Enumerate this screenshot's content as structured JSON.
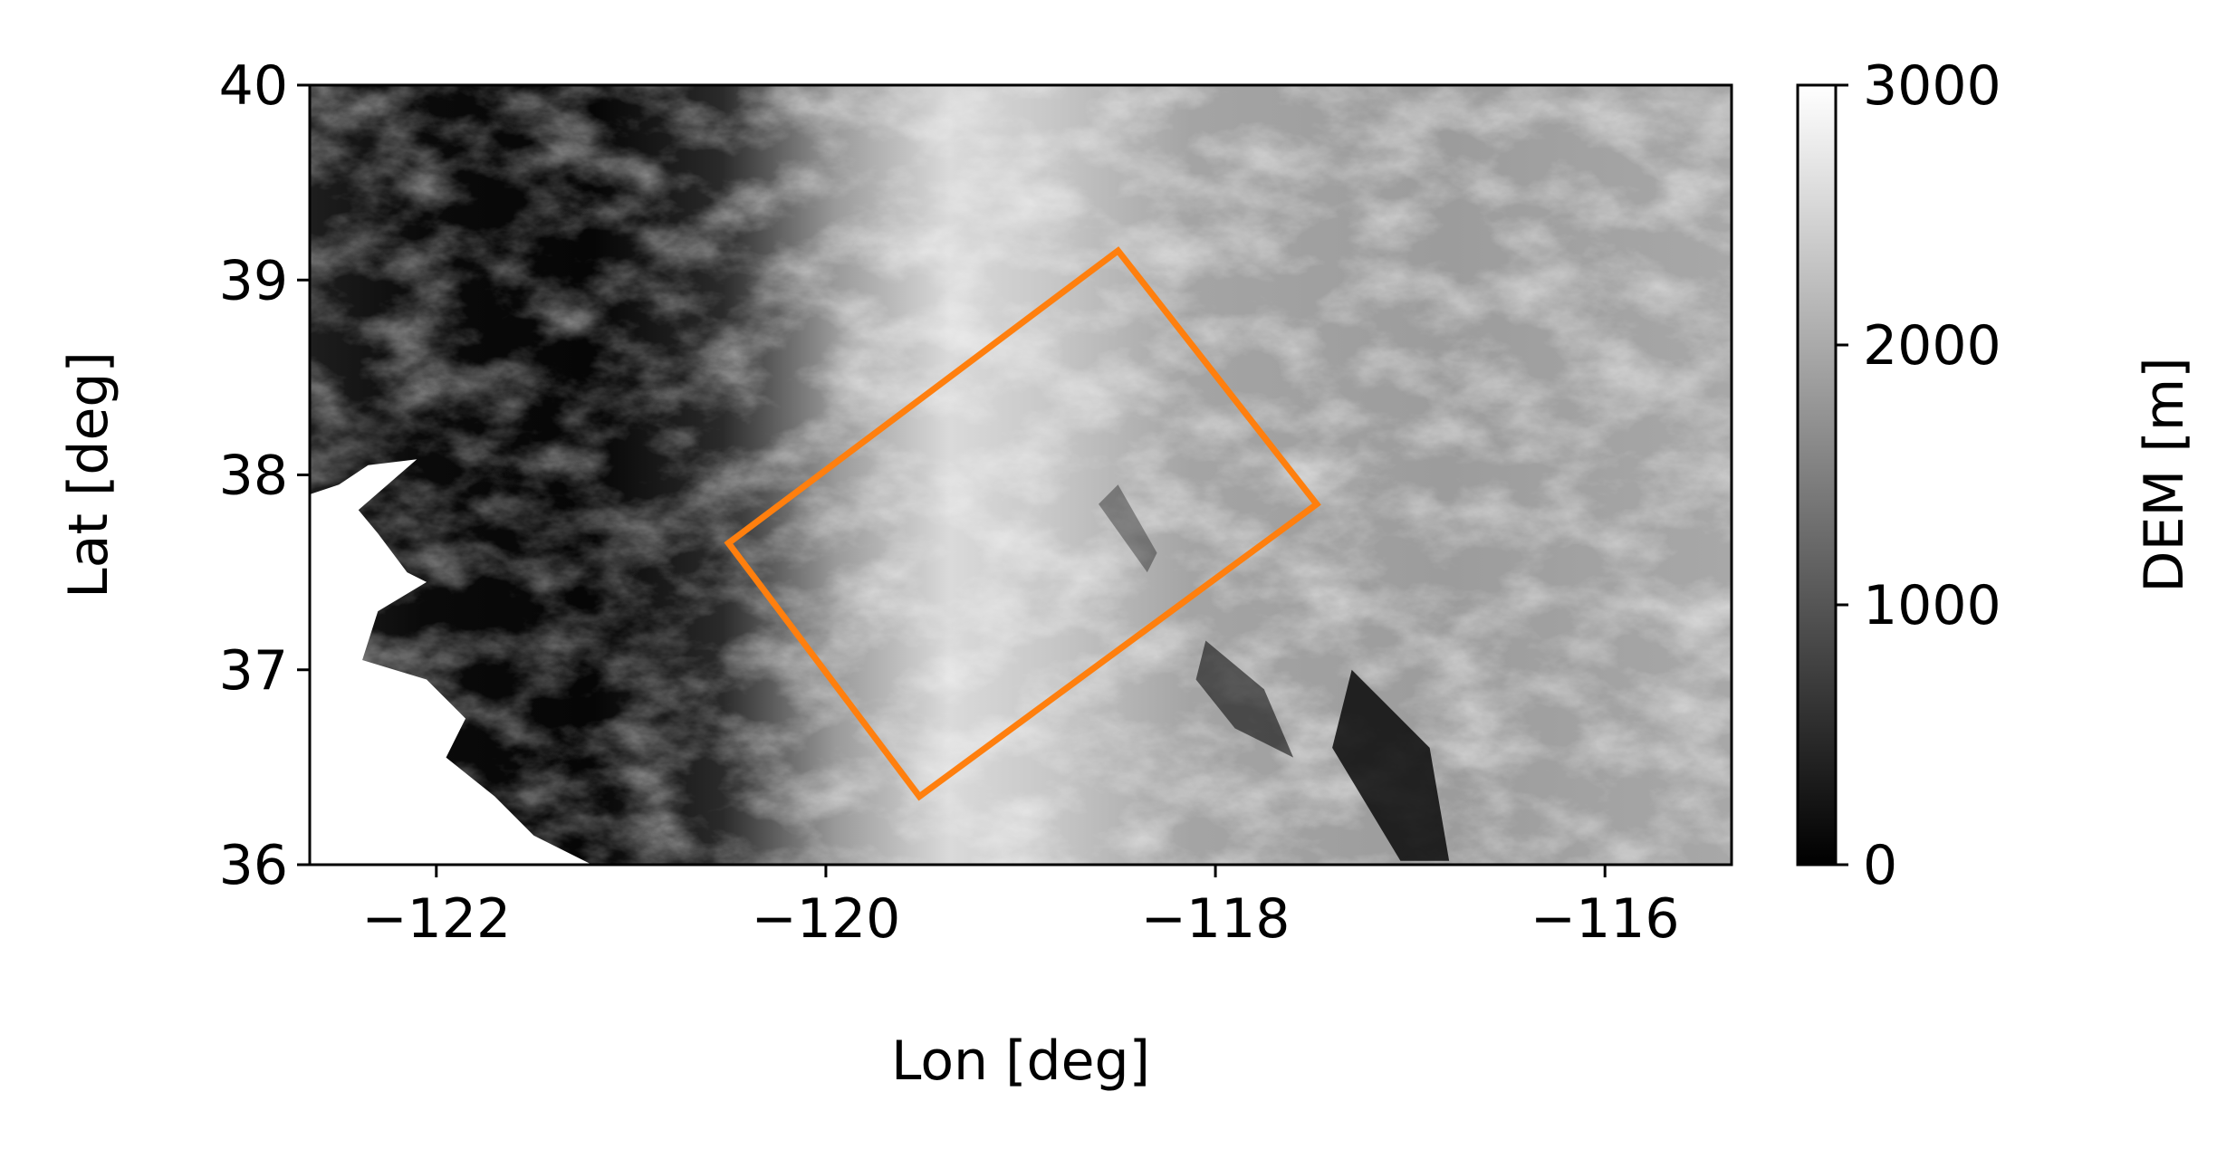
{
  "map": {
    "xlabel": "Lon [deg]",
    "ylabel": "Lat [deg]",
    "xlim": [
      -122.65,
      -115.35
    ],
    "ylim": [
      36.0,
      40.0
    ],
    "x_ticks": [
      {
        "value": -122,
        "label": "−122"
      },
      {
        "value": -120,
        "label": "−120"
      },
      {
        "value": -118,
        "label": "−118"
      },
      {
        "value": -116,
        "label": "−116"
      }
    ],
    "y_ticks": [
      {
        "value": 36,
        "label": "36"
      },
      {
        "value": 37,
        "label": "37"
      },
      {
        "value": 38,
        "label": "38"
      },
      {
        "value": 39,
        "label": "39"
      },
      {
        "value": 40,
        "label": "40"
      }
    ],
    "layer": "DEM elevation (grayscale)",
    "colormap": "gray",
    "footprint": {
      "color": "#ff7f0e",
      "corners_lonlat": [
        [
          -120.5,
          37.65
        ],
        [
          -119.52,
          36.35
        ],
        [
          -117.48,
          37.85
        ],
        [
          -118.5,
          39.15
        ]
      ]
    }
  },
  "colorbar": {
    "label": "DEM [m]",
    "min": 0,
    "max": 3000,
    "ticks": [
      {
        "value": 0,
        "label": "0"
      },
      {
        "value": 1000,
        "label": "1000"
      },
      {
        "value": 2000,
        "label": "2000"
      },
      {
        "value": 3000,
        "label": "3000"
      }
    ]
  }
}
